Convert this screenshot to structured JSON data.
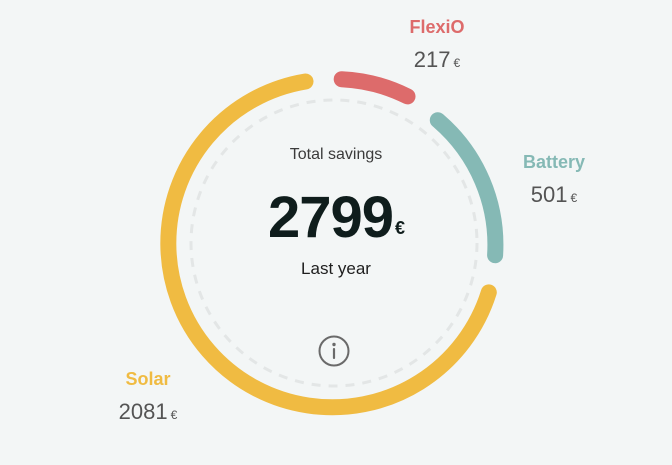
{
  "summary": {
    "label": "Total savings",
    "value": "2799",
    "currency": "€",
    "period": "Last year"
  },
  "segments": [
    {
      "name": "FlexiO",
      "value": "217",
      "amount": 217,
      "currency": "€",
      "color": "#dd6b6b"
    },
    {
      "name": "Battery",
      "value": "501",
      "amount": 501,
      "currency": "€",
      "color": "#85b9b5"
    },
    {
      "name": "Solar",
      "value": "2081",
      "amount": 2081,
      "currency": "€",
      "color": "#f0bb42"
    }
  ],
  "icons": {
    "info": "info-icon"
  },
  "colors": {
    "background": "#f3f6f6",
    "track": "#e3e6e6",
    "total_text": "#0f1d1c"
  }
}
